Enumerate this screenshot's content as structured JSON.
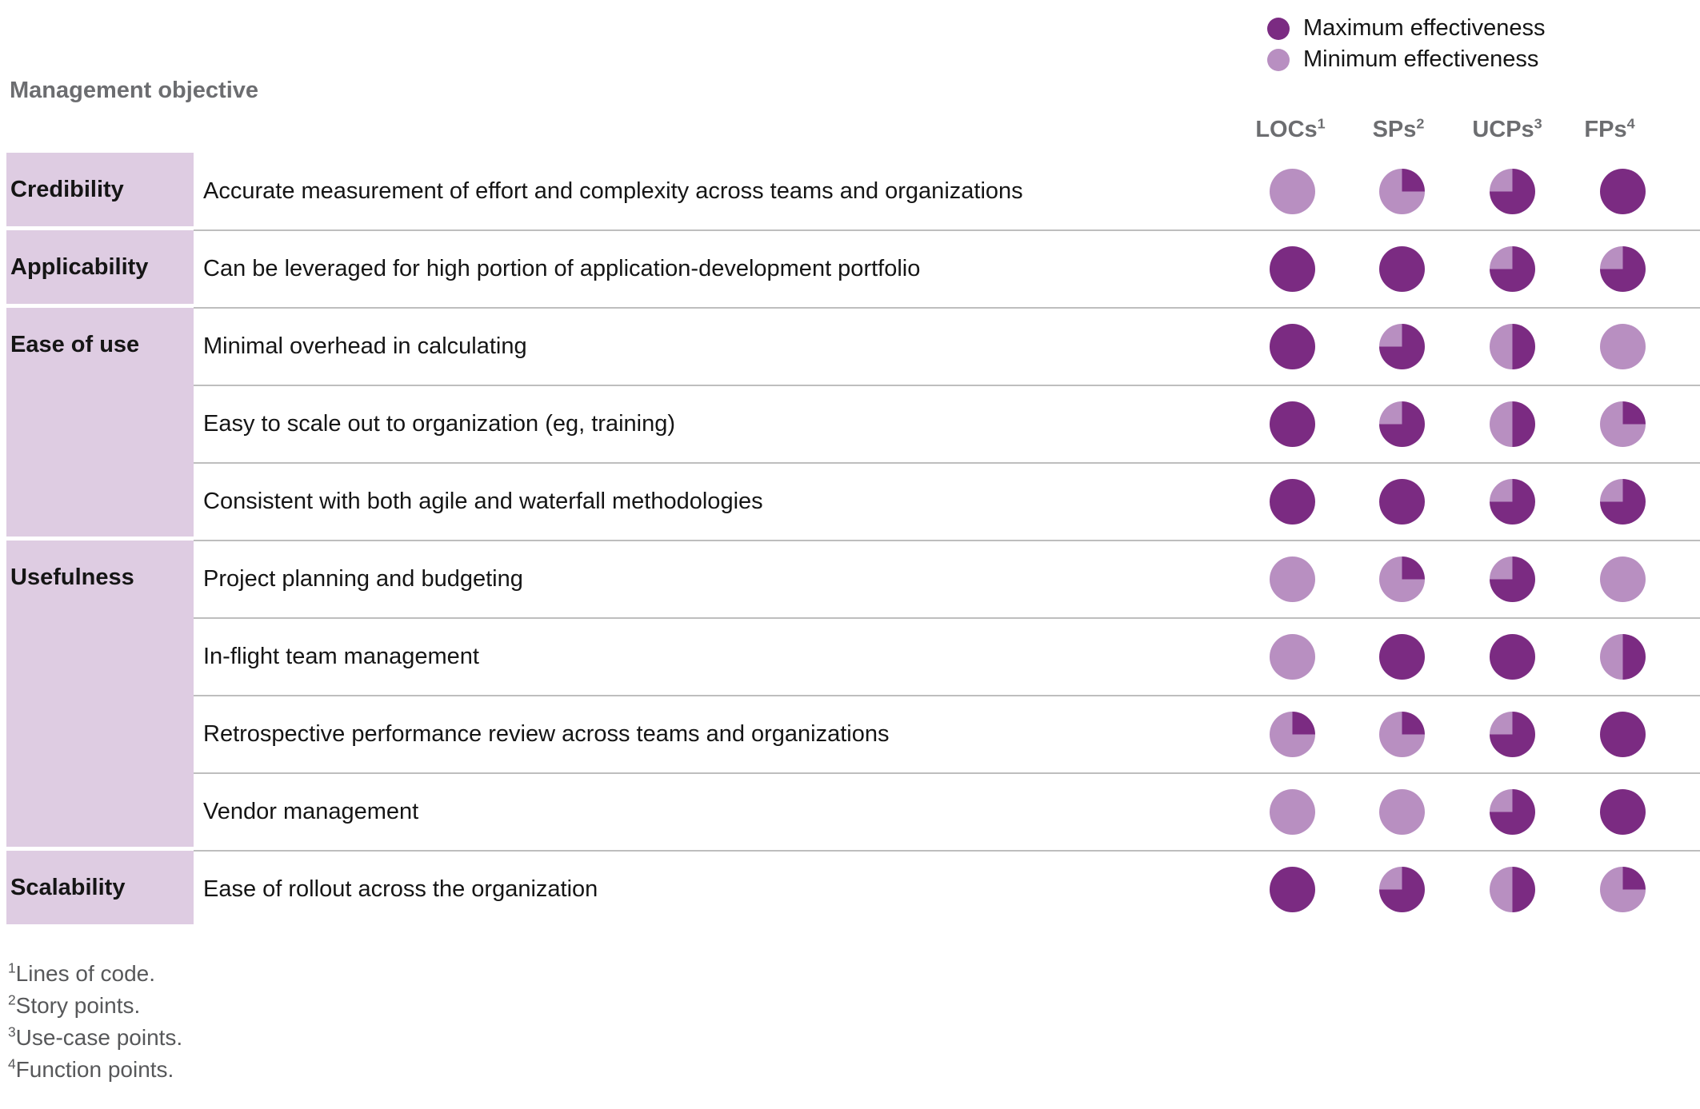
{
  "legend": {
    "max_label": "Maximum effectiveness",
    "min_label": "Minimum effectiveness"
  },
  "header": {
    "row_axis_label": "Management objective"
  },
  "colors": {
    "max_effectiveness": "#7B2B82",
    "min_effectiveness": "#B88FC1",
    "category_background": "#DECCE2",
    "divider": "#BEBEBE",
    "muted_text": "#6C6D70"
  },
  "chart_data": {
    "type": "heatmap",
    "subtype": "harvey-ball-matrix",
    "value_unit": "quarters filled dark, 0 = minimum effectiveness, 4 = maximum effectiveness; dark wedge starts at 12 o'clock clockwise",
    "legend": [
      "Maximum effectiveness",
      "Minimum effectiveness"
    ],
    "legend_position": "top-right",
    "row_axis_label": "Management objective",
    "columns": [
      {
        "label": "LOCs",
        "sup": "1"
      },
      {
        "label": "SPs",
        "sup": "2"
      },
      {
        "label": "UCPs",
        "sup": "3"
      },
      {
        "label": "FPs",
        "sup": "4"
      }
    ],
    "rows": [
      {
        "category": "Credibility",
        "objective": "Accurate measurement of effort and complexity across teams and organizations",
        "values": [
          0,
          1,
          3,
          4
        ]
      },
      {
        "category": "Applicability",
        "objective": "Can be leveraged for high portion of application-development portfolio",
        "values": [
          4,
          4,
          3,
          3
        ]
      },
      {
        "category": "Ease of use",
        "objective": "Minimal overhead in calculating",
        "values": [
          4,
          3,
          2,
          0
        ]
      },
      {
        "category": "Ease of use",
        "objective": "Easy to scale out to organization (eg, training)",
        "values": [
          4,
          3,
          2,
          1
        ]
      },
      {
        "category": "Ease of use",
        "objective": "Consistent with both agile and waterfall methodologies",
        "values": [
          4,
          4,
          3,
          3
        ]
      },
      {
        "category": "Usefulness",
        "objective": "Project planning and budgeting",
        "values": [
          0,
          1,
          3,
          0
        ]
      },
      {
        "category": "Usefulness",
        "objective": "In-flight team management",
        "values": [
          0,
          4,
          4,
          2
        ]
      },
      {
        "category": "Usefulness",
        "objective": "Retrospective performance review across teams and organizations",
        "values": [
          1,
          1,
          3,
          4
        ]
      },
      {
        "category": "Usefulness",
        "objective": "Vendor management",
        "values": [
          0,
          0,
          3,
          4
        ]
      },
      {
        "category": "Scalability",
        "objective": "Ease of rollout across the organization",
        "values": [
          4,
          3,
          2,
          1
        ]
      }
    ]
  },
  "footnotes": [
    {
      "sup": "1",
      "text": "Lines of code."
    },
    {
      "sup": "2",
      "text": "Story points."
    },
    {
      "sup": "3",
      "text": "Use-case points."
    },
    {
      "sup": "4",
      "text": "Function points."
    }
  ]
}
